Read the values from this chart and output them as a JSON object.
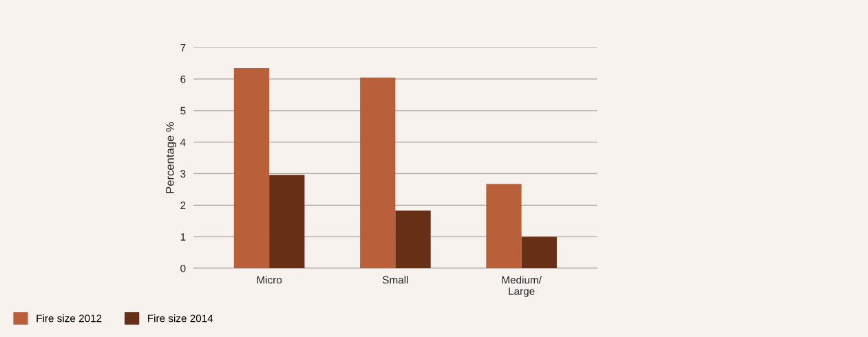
{
  "chart_data": {
    "type": "bar",
    "ylabel": "Percentage %",
    "categories": [
      "Micro",
      "Small",
      "Medium/\nLarge"
    ],
    "series": [
      {
        "name": "Fire size 2012",
        "color": "#b9603b",
        "values": [
          6.35,
          6.05,
          2.67
        ]
      },
      {
        "name": "Fire size 2014",
        "color": "#673016",
        "values": [
          2.96,
          1.83,
          1.0
        ]
      }
    ],
    "ylim": [
      0,
      7
    ],
    "yticks": [
      0,
      1,
      2,
      3,
      4,
      5,
      6,
      7
    ],
    "grid": "y",
    "legend": "bottom left"
  }
}
